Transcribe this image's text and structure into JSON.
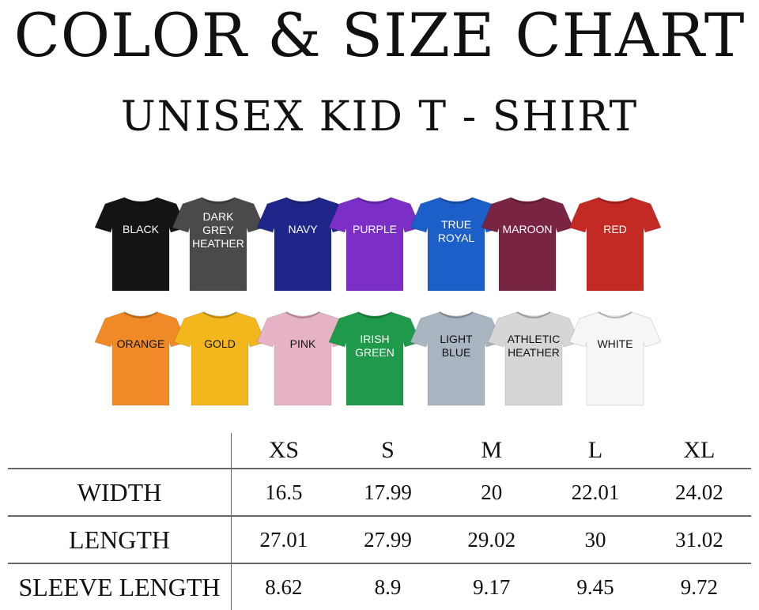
{
  "title": "COLOR & SIZE CHART",
  "subtitle": "UNISEX  KID  T - SHIRT",
  "shirts": [
    {
      "label": "BLACK",
      "color": "#141414",
      "text_color": "#ffffff"
    },
    {
      "label": "DARK\nGREY\nHEATHER",
      "color": "#4a4a4d",
      "text_color": "#ffffff"
    },
    {
      "label": "NAVY",
      "color": "#1f268a",
      "text_color": "#ffffff"
    },
    {
      "label": "PURPLE",
      "color": "#7b2fc6",
      "text_color": "#ffffff"
    },
    {
      "label": "TRUE\nROYAL",
      "color": "#1d5fc9",
      "text_color": "#ffffff"
    },
    {
      "label": "MAROON",
      "color": "#7a2444",
      "text_color": "#ffffff"
    },
    {
      "label": "RED",
      "color": "#c42a24",
      "text_color": "#ffffff"
    },
    {
      "label": "ORANGE",
      "color": "#f08a26",
      "text_color": "#111111"
    },
    {
      "label": "GOLD",
      "color": "#f2b71d",
      "text_color": "#111111"
    },
    {
      "label": "PINK",
      "color": "#e6b3c6",
      "text_color": "#111111"
    },
    {
      "label": "IRISH\nGREEN",
      "color": "#1f9a4a",
      "text_color": "#ffffff"
    },
    {
      "label": "LIGHT\nBLUE",
      "color": "#a9b5c1",
      "text_color": "#111111"
    },
    {
      "label": "ATHLETIC\nHEATHER",
      "color": "#d7d5d5",
      "text_color": "#111111"
    },
    {
      "label": "WHITE",
      "color": "#f6f6f6",
      "text_color": "#111111"
    }
  ],
  "size_table": {
    "sizes": [
      "XS",
      "S",
      "M",
      "L",
      "XL"
    ],
    "rows": [
      {
        "label": "WIDTH",
        "values": [
          "16.5",
          "17.99",
          "20",
          "22.01",
          "24.02"
        ]
      },
      {
        "label": "LENGTH",
        "values": [
          "27.01",
          "27.99",
          "29.02",
          "30",
          "31.02"
        ]
      },
      {
        "label": "SLEEVE LENGTH",
        "values": [
          "8.62",
          "8.9",
          "9.17",
          "9.45",
          "9.72"
        ]
      }
    ]
  }
}
